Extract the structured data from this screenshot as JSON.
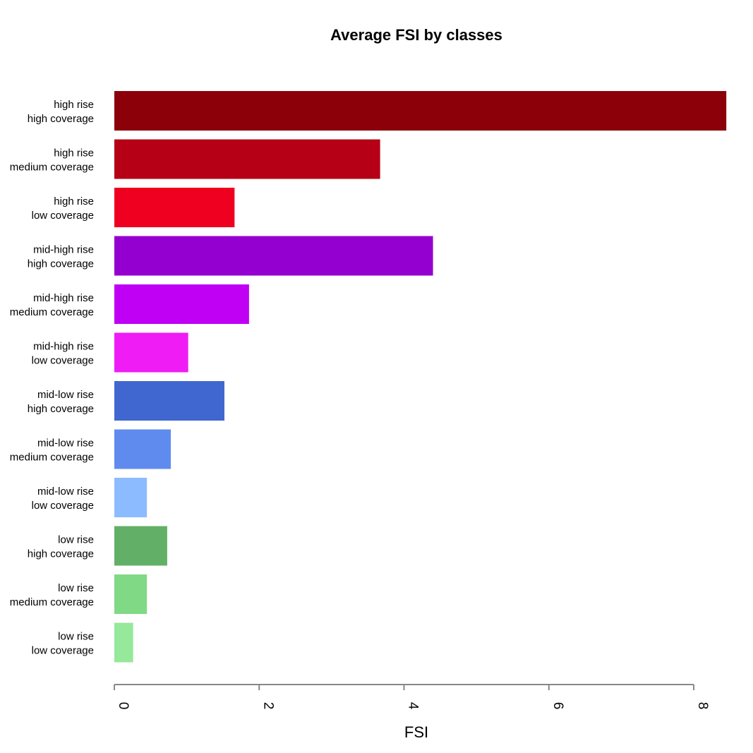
{
  "chart_data": {
    "type": "bar",
    "orientation": "horizontal",
    "title": "Average FSI by classes",
    "xlabel": "FSI",
    "ylabel": "",
    "xlim": [
      0,
      8
    ],
    "xticks": [
      0,
      2,
      4,
      6,
      8
    ],
    "xtick_labels": [
      "0",
      "2",
      "4",
      "6",
      "8"
    ],
    "grid": false,
    "legend": "none",
    "categories": [
      [
        "high rise",
        "high coverage"
      ],
      [
        "high rise",
        "medium coverage"
      ],
      [
        "high rise",
        "low coverage"
      ],
      [
        "mid-high rise",
        "high coverage"
      ],
      [
        "mid-high rise",
        "medium coverage"
      ],
      [
        "mid-high rise",
        "low coverage"
      ],
      [
        "mid-low rise",
        "high coverage"
      ],
      [
        "mid-low rise",
        "medium coverage"
      ],
      [
        "mid-low rise",
        "low coverage"
      ],
      [
        "low rise",
        "high coverage"
      ],
      [
        "low rise",
        "medium coverage"
      ],
      [
        "low rise",
        "low coverage"
      ]
    ],
    "values": [
      8.45,
      3.67,
      1.66,
      4.4,
      1.86,
      1.02,
      1.52,
      0.78,
      0.45,
      0.73,
      0.45,
      0.26
    ],
    "colors": [
      "#8b0009",
      "#b50016",
      "#ef0021",
      "#9400cf",
      "#c000f5",
      "#f01cf6",
      "#4067cf",
      "#5f8bef",
      "#8dbbff",
      "#62b067",
      "#7fd985",
      "#96e89a"
    ],
    "axis_color": "#888888"
  }
}
